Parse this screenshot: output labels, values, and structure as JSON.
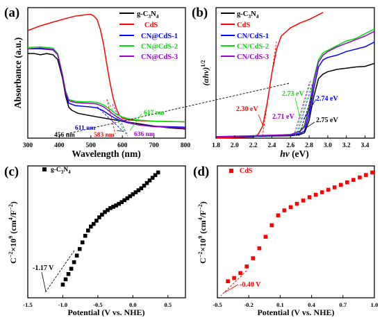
{
  "chart_data": [
    {
      "panel": "(a)",
      "type": "line",
      "xlabel": "Wavelength (nm)",
      "ylabel": "Absorbance (a.u.)",
      "xlim": [
        300,
        800
      ],
      "xticks": [
        "300",
        "400",
        "500",
        "600",
        "700",
        "800"
      ],
      "legend_position": "top-right",
      "series": [
        {
          "name": "g-C3N4",
          "color": "#000000",
          "x": [
            300,
            320,
            340,
            360,
            380,
            395,
            410,
            420,
            430,
            440,
            460,
            500,
            550,
            600,
            650,
            700,
            750,
            800
          ],
          "y": [
            0.7,
            0.7,
            0.69,
            0.7,
            0.69,
            0.65,
            0.5,
            0.35,
            0.255,
            0.23,
            0.205,
            0.185,
            0.162,
            0.14,
            0.12,
            0.1,
            0.085,
            0.075
          ]
        },
        {
          "name": "CdS",
          "color": "#ff0000",
          "x": [
            300,
            340,
            380,
            420,
            450,
            480,
            500,
            510,
            520,
            530,
            540,
            550,
            560,
            570,
            580,
            590,
            600,
            620,
            650,
            700,
            800
          ],
          "y": [
            0.89,
            0.93,
            0.96,
            0.99,
            1.01,
            1.02,
            1.025,
            1.01,
            0.98,
            0.9,
            0.78,
            0.62,
            0.47,
            0.34,
            0.25,
            0.19,
            0.165,
            0.15,
            0.145,
            0.14,
            0.135
          ]
        },
        {
          "name": "CN@CdS-1",
          "color": "#0000ff",
          "x": [
            300,
            340,
            380,
            395,
            410,
            420,
            430,
            450,
            480,
            500,
            520,
            540,
            560,
            580,
            600,
            620,
            650,
            700,
            800
          ],
          "y": [
            0.74,
            0.74,
            0.73,
            0.69,
            0.52,
            0.37,
            0.29,
            0.27,
            0.262,
            0.258,
            0.25,
            0.225,
            0.19,
            0.16,
            0.14,
            0.125,
            0.11,
            0.098,
            0.09
          ]
        },
        {
          "name": "CN@CdS-2",
          "color": "#00e000",
          "x": [
            300,
            340,
            380,
            395,
            410,
            420,
            430,
            450,
            480,
            500,
            520,
            540,
            560,
            580,
            600,
            620,
            650,
            700,
            800
          ],
          "y": [
            0.75,
            0.755,
            0.745,
            0.7,
            0.53,
            0.39,
            0.32,
            0.305,
            0.3,
            0.3,
            0.295,
            0.275,
            0.24,
            0.2,
            0.175,
            0.16,
            0.15,
            0.14,
            0.135
          ]
        },
        {
          "name": "CN@CdS-3",
          "color": "#9900cc",
          "x": [
            300,
            340,
            380,
            395,
            410,
            420,
            430,
            450,
            480,
            500,
            520,
            540,
            560,
            580,
            600,
            620,
            650,
            700,
            800
          ],
          "y": [
            0.74,
            0.745,
            0.735,
            0.69,
            0.52,
            0.38,
            0.31,
            0.295,
            0.29,
            0.288,
            0.282,
            0.26,
            0.22,
            0.18,
            0.15,
            0.13,
            0.11,
            0.095,
            0.085
          ]
        }
      ],
      "annotations": [
        {
          "text": "456 nm",
          "color": "#000000"
        },
        {
          "text": "611 nm",
          "color": "#0000ff"
        },
        {
          "text": "583 nm",
          "color": "#ff0000"
        },
        {
          "text": "617 nm",
          "color": "#00e000"
        },
        {
          "text": "636 nm",
          "color": "#9900cc"
        }
      ]
    },
    {
      "panel": "(b)",
      "type": "line",
      "xlabel": "hv (eV)",
      "ylabel": "(αhv)1/2",
      "xlim": [
        1.8,
        3.5
      ],
      "xticks": [
        "1.8",
        "2.0",
        "2.2",
        "2.4",
        "2.6",
        "2.8",
        "3.0",
        "3.2",
        "3.4"
      ],
      "legend_position": "top-left",
      "series": [
        {
          "name": "g-C3N4",
          "color": "#000000",
          "x": [
            1.8,
            2.2,
            2.6,
            2.7,
            2.75,
            2.8,
            2.85,
            2.9,
            2.95,
            3.0,
            3.1,
            3.2,
            3.3,
            3.4,
            3.5
          ],
          "y": [
            0.01,
            0.015,
            0.02,
            0.03,
            0.045,
            0.15,
            0.35,
            0.5,
            0.54,
            0.56,
            0.58,
            0.59,
            0.6,
            0.605,
            0.63
          ]
        },
        {
          "name": "CdS",
          "color": "#ff0000",
          "x": [
            1.8,
            2.0,
            2.2,
            2.25,
            2.3,
            2.35,
            2.4,
            2.45,
            2.5,
            2.6,
            2.7,
            2.8,
            2.9,
            2.95
          ],
          "y": [
            0.0,
            0.005,
            0.01,
            0.03,
            0.1,
            0.3,
            0.55,
            0.75,
            0.86,
            0.93,
            0.97,
            1.0,
            1.04,
            1.06
          ]
        },
        {
          "name": "CN/CdS-1",
          "color": "#0000ff",
          "x": [
            1.8,
            2.2,
            2.6,
            2.7,
            2.75,
            2.8,
            2.85,
            2.9,
            2.95,
            3.0,
            3.1,
            3.2,
            3.3,
            3.4,
            3.5
          ],
          "y": [
            0.01,
            0.015,
            0.025,
            0.04,
            0.06,
            0.2,
            0.42,
            0.6,
            0.66,
            0.68,
            0.7,
            0.73,
            0.75,
            0.77,
            0.81
          ]
        },
        {
          "name": "CN/CdS-2",
          "color": "#00e000",
          "x": [
            1.8,
            2.2,
            2.6,
            2.7,
            2.75,
            2.8,
            2.85,
            2.9,
            2.95,
            3.0,
            3.1,
            3.2,
            3.3,
            3.4,
            3.5
          ],
          "y": [
            0.012,
            0.02,
            0.03,
            0.06,
            0.11,
            0.28,
            0.5,
            0.66,
            0.72,
            0.74,
            0.78,
            0.82,
            0.84,
            0.88,
            0.92
          ]
        },
        {
          "name": "CN/CdS-3",
          "color": "#9900cc",
          "x": [
            1.8,
            2.2,
            2.6,
            2.7,
            2.75,
            2.8,
            2.85,
            2.9,
            2.95,
            3.0,
            3.1,
            3.2,
            3.3,
            3.4,
            3.5
          ],
          "y": [
            0.012,
            0.02,
            0.03,
            0.055,
            0.095,
            0.25,
            0.48,
            0.64,
            0.7,
            0.73,
            0.77,
            0.8,
            0.83,
            0.86,
            0.9
          ]
        }
      ],
      "annotations": [
        {
          "text": "2.30 eV",
          "color": "#ff0000"
        },
        {
          "text": "2.73 eV",
          "color": "#00e000"
        },
        {
          "text": "2.71 eV",
          "color": "#9900cc"
        },
        {
          "text": "2.74 eV",
          "color": "#0000ff"
        },
        {
          "text": "2.75 eV",
          "color": "#000000"
        }
      ]
    },
    {
      "panel": "(c)",
      "type": "scatter",
      "xlabel": "Potential (V vs. NHE)",
      "ylabel": "C−2×109 (cm4/F−2)",
      "xlim": [
        -1.5,
        0.75
      ],
      "xticks": [
        "-1.5",
        "-1.0",
        "-0.5",
        "0.0",
        "0.5"
      ],
      "legend_position": "top-left",
      "series": [
        {
          "name": "g-C3N4",
          "color": "#000000",
          "x": [
            -1.0,
            -0.96,
            -0.92,
            -0.88,
            -0.84,
            -0.8,
            -0.76,
            -0.72,
            -0.68,
            -0.64,
            -0.6,
            -0.56,
            -0.52,
            -0.48,
            -0.44,
            -0.4,
            -0.36,
            -0.32,
            -0.28,
            -0.24,
            -0.2,
            -0.16,
            -0.12,
            -0.08,
            -0.04,
            0.0,
            0.04,
            0.08,
            0.12,
            0.16,
            0.2,
            0.24,
            0.28,
            0.32,
            0.36
          ],
          "y": [
            0.1,
            0.14,
            0.18,
            0.22,
            0.27,
            0.32,
            0.37,
            0.42,
            0.47,
            0.51,
            0.54,
            0.56,
            0.585,
            0.61,
            0.63,
            0.65,
            0.665,
            0.68,
            0.69,
            0.7,
            0.712,
            0.725,
            0.74,
            0.755,
            0.77,
            0.785,
            0.8,
            0.815,
            0.83,
            0.85,
            0.87,
            0.89,
            0.91,
            0.93,
            0.95
          ]
        }
      ],
      "annotations": [
        {
          "text": "-1.17 V",
          "color": "#000000"
        }
      ]
    },
    {
      "panel": "(d)",
      "type": "scatter",
      "xlabel": "Potential (V vs. NHE)",
      "ylabel": "C−2×109 (cm4/F−2)",
      "xlim": [
        -0.5,
        1.0
      ],
      "xticks": [
        "-0.5",
        "-0.2",
        "0.1",
        "0.4",
        "0.7",
        "1.0"
      ],
      "legend_position": "top-left",
      "series": [
        {
          "name": "CdS",
          "color": "#ff0000",
          "x": [
            -0.4,
            -0.34,
            -0.28,
            -0.22,
            -0.16,
            -0.1,
            -0.04,
            0.02,
            0.08,
            0.14,
            0.2,
            0.26,
            0.32,
            0.38,
            0.44,
            0.5,
            0.56,
            0.62,
            0.68,
            0.74,
            0.8,
            0.86,
            0.92,
            0.98
          ],
          "y": [
            0.1,
            0.12,
            0.15,
            0.19,
            0.24,
            0.3,
            0.37,
            0.44,
            0.5,
            0.53,
            0.55,
            0.57,
            0.59,
            0.61,
            0.625,
            0.64,
            0.655,
            0.67,
            0.685,
            0.7,
            0.715,
            0.73,
            0.745,
            0.76
          ]
        }
      ],
      "annotations": [
        {
          "text": "-0.40 V",
          "color": "#ff0000"
        }
      ]
    }
  ]
}
